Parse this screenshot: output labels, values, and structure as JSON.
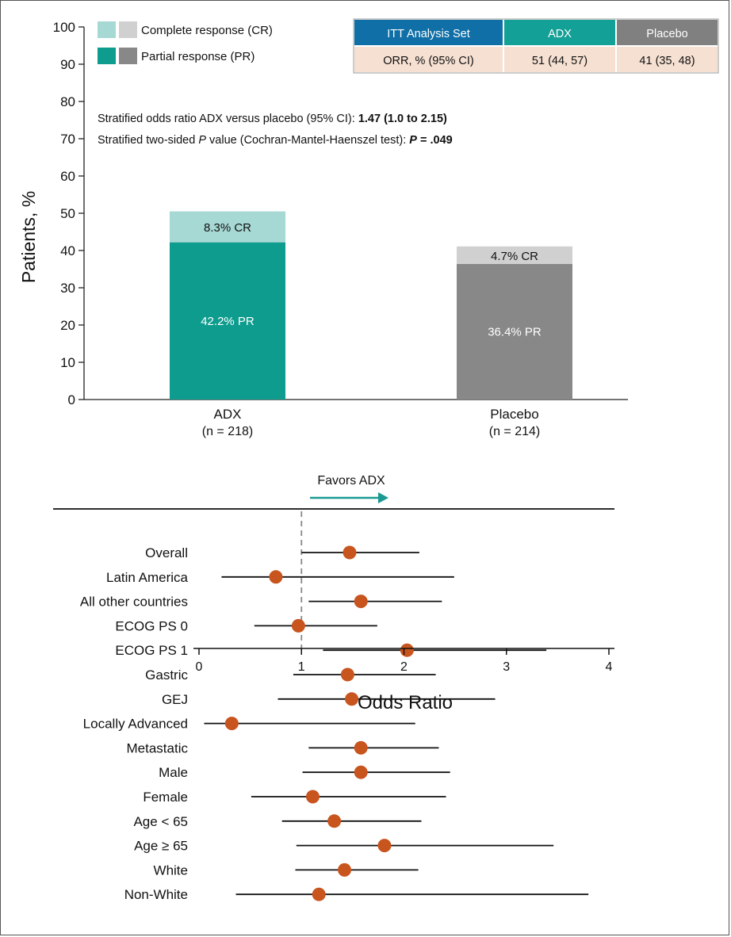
{
  "chart_data": [
    {
      "type": "bar",
      "stacked": true,
      "ylabel": "Patients, %",
      "ylim": [
        0,
        100
      ],
      "yticks": [
        0,
        10,
        20,
        30,
        40,
        50,
        60,
        70,
        80,
        90,
        100
      ],
      "categories": [
        {
          "name": "ADX",
          "n": "(n = 218)"
        },
        {
          "name": "Placebo",
          "n": "(n = 214)"
        }
      ],
      "series": [
        {
          "name": "Partial response (PR)",
          "values": [
            42.2,
            36.4
          ],
          "labels": [
            "42.2% PR",
            "36.4% PR"
          ],
          "colors": [
            "#0d9c8e",
            "#888888"
          ]
        },
        {
          "name": "Complete response (CR)",
          "values": [
            8.3,
            4.7
          ],
          "labels": [
            "8.3% CR",
            "4.7% CR"
          ],
          "colors": [
            "#a6d8d4",
            "#d0d0d0"
          ]
        }
      ],
      "legend": [
        {
          "label": "Complete response (CR)",
          "colors": [
            "#a6d8d4",
            "#d0d0d0"
          ]
        },
        {
          "label": "Partial response (PR)",
          "colors": [
            "#0d9c8e",
            "#888888"
          ]
        }
      ],
      "legend_position": "top-left",
      "annotations": [
        {
          "prefix": "Stratified odds ratio ADX versus placebo (95% CI): ",
          "bold": "1.47 (1.0 to 2.15)"
        },
        {
          "prefix": "Stratified two-sided ",
          "italic": "P",
          "middle": " value (Cochran-Mantel-Haenszel test): ",
          "bolditalic": "P",
          "bold": " = .049"
        }
      ],
      "table": {
        "headers": [
          "ITT Analysis Set",
          "ADX",
          "Placebo"
        ],
        "header_colors": [
          "#0f6fa6",
          "#13a096",
          "#808080"
        ],
        "row": [
          "ORR, % (95% CI)",
          "51 (44, 57)",
          "41 (35, 48)"
        ],
        "row_color": "#f6e0d2"
      }
    },
    {
      "type": "forest",
      "xlabel": "Odds Ratio",
      "xlim": [
        0,
        4
      ],
      "xticks": [
        0,
        1,
        2,
        3,
        4
      ],
      "reference_line": 1,
      "direction_label": "Favors ADX",
      "point_color": "#c8541e",
      "arrow_color": "#1a9a92",
      "rows": [
        {
          "label": "Overall",
          "or": 1.47,
          "lo": 1.0,
          "hi": 2.15
        },
        {
          "label": "Latin America",
          "or": 0.75,
          "lo": 0.22,
          "hi": 2.49
        },
        {
          "label": "All other countries",
          "or": 1.58,
          "lo": 1.07,
          "hi": 2.37
        },
        {
          "label": "ECOG PS 0",
          "or": 0.97,
          "lo": 0.54,
          "hi": 1.74
        },
        {
          "label": "ECOG PS 1",
          "or": 2.03,
          "lo": 1.21,
          "hi": 3.39
        },
        {
          "label": "Gastric",
          "or": 1.45,
          "lo": 0.92,
          "hi": 2.31
        },
        {
          "label": "GEJ",
          "or": 1.49,
          "lo": 0.77,
          "hi": 2.89
        },
        {
          "label": "Locally Advanced",
          "or": 0.32,
          "lo": 0.05,
          "hi": 2.11
        },
        {
          "label": "Metastatic",
          "or": 1.58,
          "lo": 1.07,
          "hi": 2.34
        },
        {
          "label": "Male",
          "or": 1.58,
          "lo": 1.01,
          "hi": 2.45
        },
        {
          "label": "Female",
          "or": 1.11,
          "lo": 0.51,
          "hi": 2.41
        },
        {
          "label": "Age < 65",
          "or": 1.32,
          "lo": 0.81,
          "hi": 2.17
        },
        {
          "label": "Age ≥ 65",
          "or": 1.81,
          "lo": 0.95,
          "hi": 3.46
        },
        {
          "label": "White",
          "or": 1.42,
          "lo": 0.94,
          "hi": 2.14
        },
        {
          "label": "Non-White",
          "or": 1.17,
          "lo": 0.36,
          "hi": 3.8
        }
      ]
    }
  ]
}
